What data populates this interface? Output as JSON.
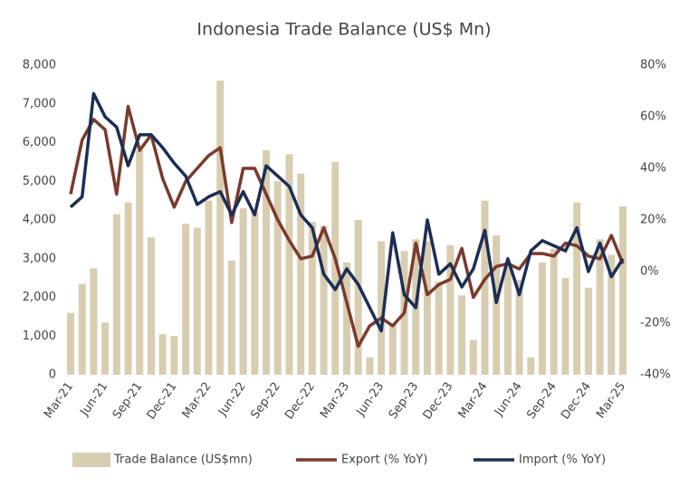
{
  "chart_data": {
    "type": "combo",
    "title": "Indonesia Trade Balance (US$ Mn)",
    "categories": [
      "Mar-21",
      null,
      null,
      "Jun-21",
      null,
      null,
      "Sep-21",
      null,
      null,
      "Dec-21",
      null,
      null,
      "Mar-22",
      null,
      null,
      "Jun-22",
      null,
      null,
      "Sep-22",
      null,
      null,
      "Dec-22",
      null,
      null,
      "Mar-23",
      null,
      null,
      "Jun-23",
      null,
      null,
      "Sep-23",
      null,
      null,
      "Dec-23",
      null,
      null,
      "Mar-24",
      null,
      null,
      "Jun-24",
      null,
      null,
      "Sep-24",
      null,
      null,
      "Dec-24",
      null,
      null,
      "Mar-25"
    ],
    "series": [
      {
        "name": "Trade Balance (US$mn)",
        "type": "bar",
        "color": "#d9cdb1",
        "values": [
          1600,
          2350,
          2750,
          1350,
          4150,
          4450,
          5800,
          3550,
          1050,
          1000,
          3900,
          3800,
          4500,
          7600,
          2950,
          4300,
          4200,
          5800,
          5000,
          5700,
          5200,
          3950,
          3850,
          5500,
          2900,
          4000,
          450,
          3450,
          1300,
          3200,
          3500,
          3450,
          2400,
          3350,
          2050,
          900,
          4500,
          3600,
          2900,
          2450,
          450,
          2900,
          3250,
          2500,
          4450,
          2250,
          3500,
          3100,
          4350
        ]
      },
      {
        "name": "Export (% YoY)",
        "type": "line",
        "axis": "y2",
        "color": "#7a3a2c",
        "values": [
          30,
          51,
          59,
          55,
          30,
          64,
          47,
          53,
          36,
          25,
          35,
          40,
          45,
          48,
          19,
          40,
          40,
          30,
          20,
          12,
          5,
          6,
          17,
          5,
          -12,
          -29,
          -21,
          -18,
          -21,
          -16,
          11,
          -9,
          -5,
          -3,
          9,
          -10,
          -3,
          2,
          3,
          1,
          7,
          7,
          6,
          11,
          10,
          6,
          5,
          14,
          3
        ]
      },
      {
        "name": "Import (% YoY)",
        "type": "line",
        "axis": "y2",
        "color": "#1b2e55",
        "values": [
          25,
          29,
          69,
          60,
          56,
          41,
          53,
          53,
          48,
          42,
          37,
          26,
          29,
          31,
          22,
          31,
          22,
          41,
          37,
          33,
          22,
          17,
          -1,
          -7,
          1,
          -5,
          -14,
          -23,
          15,
          -9,
          -14,
          20,
          -1,
          3,
          -6,
          1,
          16,
          -12,
          5,
          -9,
          8,
          12,
          10,
          8,
          17,
          0,
          11,
          -2,
          5
        ]
      }
    ],
    "ylim": [
      0,
      8000
    ],
    "yticks": [
      0,
      {
        "value": 1000,
        "label": "1,000"
      },
      {
        "value": 2000,
        "label": "2,000"
      },
      {
        "value": 3000,
        "label": "3,000"
      },
      {
        "value": 4000,
        "label": "4,000"
      },
      {
        "value": 5000,
        "label": "5,000"
      },
      {
        "value": 6000,
        "label": "6,000"
      },
      {
        "value": 7000,
        "label": "7,000"
      },
      {
        "value": 8000,
        "label": "8,000"
      }
    ],
    "y2lim": [
      -40,
      80
    ],
    "y2ticks": [
      {
        "value": -40,
        "label": "-40%"
      },
      {
        "value": -20,
        "label": "-20%"
      },
      {
        "value": 0,
        "label": "0%"
      },
      {
        "value": 20,
        "label": "20%"
      },
      {
        "value": 40,
        "label": "40%"
      },
      {
        "value": 60,
        "label": "60%"
      },
      {
        "value": 80,
        "label": "80%"
      }
    ],
    "legend": "bottom",
    "grid": false
  }
}
